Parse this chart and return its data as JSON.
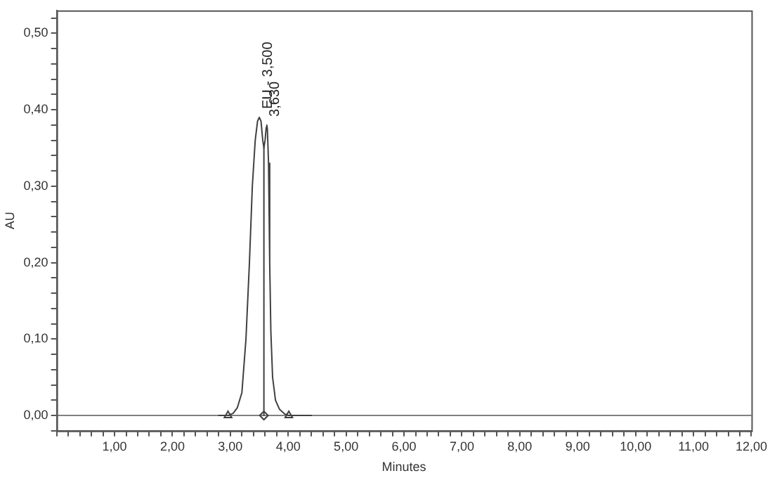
{
  "chart_data": {
    "type": "line",
    "xlabel": "Minutes",
    "ylabel": "AU",
    "xlim": [
      0,
      12
    ],
    "ylim": [
      -0.02,
      0.53
    ],
    "xticks": [
      {
        "value": 0,
        "label": null
      },
      {
        "value": 0.2,
        "label": null
      },
      {
        "value": 0.4,
        "label": null
      },
      {
        "value": 0.6,
        "label": null
      },
      {
        "value": 0.8,
        "label": null
      },
      {
        "value": 1,
        "label": "1,00"
      },
      {
        "value": 1.2,
        "label": null
      },
      {
        "value": 1.4,
        "label": null
      },
      {
        "value": 1.6,
        "label": null
      },
      {
        "value": 1.8,
        "label": null
      },
      {
        "value": 2,
        "label": "2,00"
      },
      {
        "value": 2.2,
        "label": null
      },
      {
        "value": 2.4,
        "label": null
      },
      {
        "value": 2.6,
        "label": null
      },
      {
        "value": 2.8,
        "label": null
      },
      {
        "value": 3,
        "label": "3,00"
      },
      {
        "value": 3.2,
        "label": null
      },
      {
        "value": 3.4,
        "label": null
      },
      {
        "value": 3.6,
        "label": null
      },
      {
        "value": 3.8,
        "label": null
      },
      {
        "value": 4,
        "label": "4,00"
      },
      {
        "value": 4.2,
        "label": null
      },
      {
        "value": 4.4,
        "label": null
      },
      {
        "value": 4.6,
        "label": null
      },
      {
        "value": 4.8,
        "label": null
      },
      {
        "value": 5,
        "label": "5,00"
      },
      {
        "value": 5.2,
        "label": null
      },
      {
        "value": 5.4,
        "label": null
      },
      {
        "value": 5.6,
        "label": null
      },
      {
        "value": 5.8,
        "label": null
      },
      {
        "value": 6,
        "label": "6,00"
      },
      {
        "value": 6.2,
        "label": null
      },
      {
        "value": 6.4,
        "label": null
      },
      {
        "value": 6.6,
        "label": null
      },
      {
        "value": 6.8,
        "label": null
      },
      {
        "value": 7,
        "label": "7,00"
      },
      {
        "value": 7.2,
        "label": null
      },
      {
        "value": 7.4,
        "label": null
      },
      {
        "value": 7.6,
        "label": null
      },
      {
        "value": 7.8,
        "label": null
      },
      {
        "value": 8,
        "label": "8,00"
      },
      {
        "value": 8.2,
        "label": null
      },
      {
        "value": 8.4,
        "label": null
      },
      {
        "value": 8.6,
        "label": null
      },
      {
        "value": 8.8,
        "label": null
      },
      {
        "value": 9,
        "label": "9,00"
      },
      {
        "value": 9.2,
        "label": null
      },
      {
        "value": 9.4,
        "label": null
      },
      {
        "value": 9.6,
        "label": null
      },
      {
        "value": 9.8,
        "label": null
      },
      {
        "value": 10,
        "label": "10,00"
      },
      {
        "value": 10.2,
        "label": null
      },
      {
        "value": 10.4,
        "label": null
      },
      {
        "value": 10.6,
        "label": null
      },
      {
        "value": 10.8,
        "label": null
      },
      {
        "value": 11,
        "label": "11,00"
      },
      {
        "value": 11.2,
        "label": null
      },
      {
        "value": 11.4,
        "label": null
      },
      {
        "value": 11.6,
        "label": null
      },
      {
        "value": 11.8,
        "label": null
      },
      {
        "value": 12,
        "label": "12,00"
      }
    ],
    "yticks": [
      {
        "value": -0.02,
        "label": null
      },
      {
        "value": 0,
        "label": "0,00"
      },
      {
        "value": 0.02,
        "label": null
      },
      {
        "value": 0.04,
        "label": null
      },
      {
        "value": 0.06,
        "label": null
      },
      {
        "value": 0.08,
        "label": null
      },
      {
        "value": 0.1,
        "label": "0,10"
      },
      {
        "value": 0.12,
        "label": null
      },
      {
        "value": 0.14,
        "label": null
      },
      {
        "value": 0.16,
        "label": null
      },
      {
        "value": 0.18,
        "label": null
      },
      {
        "value": 0.2,
        "label": "0,20"
      },
      {
        "value": 0.22,
        "label": null
      },
      {
        "value": 0.24,
        "label": null
      },
      {
        "value": 0.26,
        "label": null
      },
      {
        "value": 0.28,
        "label": null
      },
      {
        "value": 0.3,
        "label": "0,30"
      },
      {
        "value": 0.32,
        "label": null
      },
      {
        "value": 0.34,
        "label": null
      },
      {
        "value": 0.36,
        "label": null
      },
      {
        "value": 0.38,
        "label": null
      },
      {
        "value": 0.4,
        "label": "0,40"
      },
      {
        "value": 0.42,
        "label": null
      },
      {
        "value": 0.44,
        "label": null
      },
      {
        "value": 0.46,
        "label": null
      },
      {
        "value": 0.48,
        "label": null
      },
      {
        "value": 0.5,
        "label": "0,50"
      },
      {
        "value": 0.52,
        "label": null
      }
    ],
    "grid": false,
    "legend": false,
    "series": [
      {
        "type": "line",
        "color": "#404040",
        "marker": "none",
        "x": [
          2.8,
          2.96,
          3.05,
          3.12,
          3.2,
          3.27,
          3.33,
          3.38,
          3.43,
          3.47,
          3.5,
          3.53,
          3.56,
          3.58,
          3.6,
          3.62,
          3.63,
          3.64,
          3.66,
          3.68,
          3.7,
          3.73,
          3.78,
          3.85,
          3.94,
          4.01,
          4.4
        ],
        "values": [
          0,
          0,
          0.003,
          0.01,
          0.03,
          0.1,
          0.2,
          0.3,
          0.36,
          0.385,
          0.39,
          0.385,
          0.36,
          0.35,
          0.36,
          0.377,
          0.38,
          0.375,
          0.33,
          0.2,
          0.11,
          0.05,
          0.02,
          0.008,
          0.002,
          0,
          0
        ]
      },
      {
        "type": "line",
        "color": "#404040",
        "marker": "none",
        "x": [
          3.58,
          3.58
        ],
        "values": [
          0,
          0.35
        ]
      },
      {
        "type": "scatter",
        "color": "#404040",
        "marker": "triangle",
        "x": [
          2.96,
          4.01
        ],
        "values": [
          0,
          0
        ]
      },
      {
        "type": "scatter",
        "color": "#404040",
        "marker": "diamond",
        "x": [
          3.58
        ],
        "values": [
          0
        ]
      }
    ],
    "ref_lines": [
      {
        "axis": "y",
        "value": 0,
        "color": "#808080"
      }
    ],
    "annotations": [
      {
        "text": "EU - 3,500",
        "x": 3.5,
        "y": 0.39
      },
      {
        "text": "3,630",
        "x": 3.63,
        "y": 0.38
      }
    ]
  }
}
